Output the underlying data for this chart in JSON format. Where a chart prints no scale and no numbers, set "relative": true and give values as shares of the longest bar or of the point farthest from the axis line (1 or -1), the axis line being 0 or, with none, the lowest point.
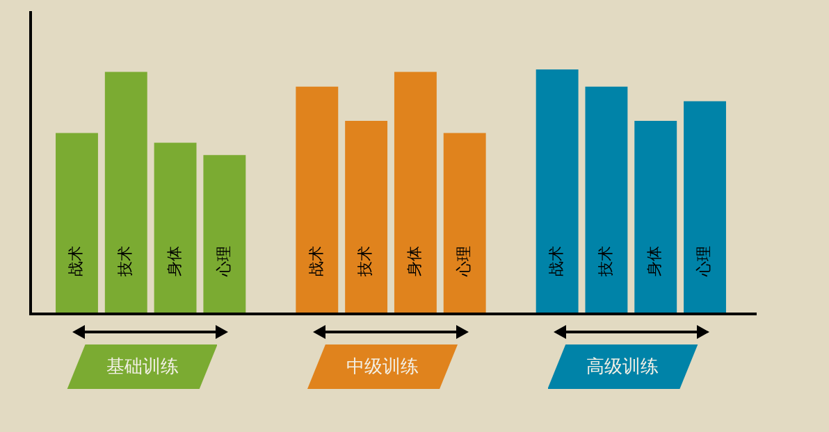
{
  "chart_data": {
    "type": "bar",
    "relative": true,
    "legend": false,
    "categories": [
      "基础训练",
      "中级训练",
      "高级训练"
    ],
    "series": [
      {
        "name": "战术",
        "colors": [
          "#7bab32",
          "#e0831d",
          "#0083a8"
        ],
        "values": [
          0.74,
          0.93,
          1
        ]
      },
      {
        "name": "技术",
        "colors": [
          "#7bab32",
          "#e0831d",
          "#0083a8"
        ],
        "values": [
          0.99,
          0.79,
          0.93
        ]
      },
      {
        "name": "身体",
        "colors": [
          "#7bab32",
          "#e0831d",
          "#0083a8"
        ],
        "values": [
          0.7,
          0.99,
          0.79
        ]
      },
      {
        "name": "心理",
        "colors": [
          "#7bab32",
          "#e0831d",
          "#0083a8"
        ],
        "values": [
          0.65,
          0.74,
          0.87
        ]
      }
    ]
  }
}
